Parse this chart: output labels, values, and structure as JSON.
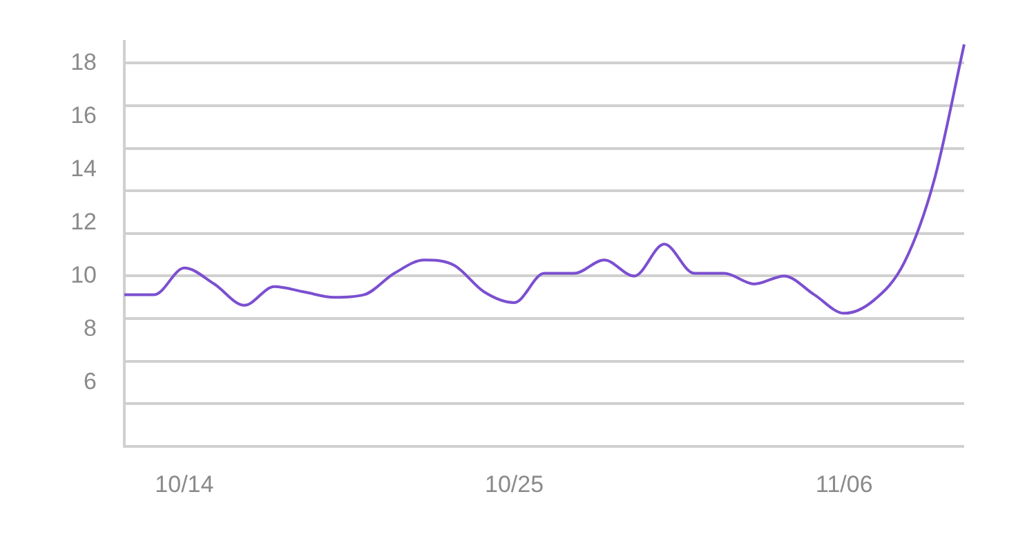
{
  "chart_data": {
    "type": "line",
    "categories": [
      null,
      null,
      "10/14",
      null,
      null,
      null,
      null,
      null,
      null,
      null,
      null,
      null,
      null,
      "10/25",
      null,
      null,
      null,
      null,
      null,
      null,
      null,
      null,
      null,
      null,
      "11/06",
      null,
      null,
      null,
      null
    ],
    "series": [
      {
        "color": "#7b4fd0",
        "values": [
          9.3,
          9.3,
          10.3,
          9.7,
          8.9,
          9.6,
          9.4,
          9.2,
          9.3,
          10.1,
          10.6,
          10.4,
          9.4,
          9.0,
          10.1,
          10.1,
          10.6,
          10.0,
          11.2,
          10.1,
          10.1,
          9.7,
          10.0,
          9.3,
          8.6,
          9.1,
          10.5,
          13.6,
          18.7
        ]
      }
    ],
    "ylim": [
      3.6,
      18.8
    ],
    "yticks": [
      {
        "value": 18,
        "label": "18"
      },
      {
        "value": 16.4,
        "label": null
      },
      16,
      {
        "value": 14.8,
        "label": null
      },
      14,
      {
        "value": 13.2,
        "label": null
      },
      12,
      {
        "value": 11.6,
        "label": null
      },
      {
        "value": 10,
        "label": "10"
      },
      {
        "value": 8.4,
        "label": null
      },
      8,
      {
        "value": 6.8,
        "label": null
      },
      6,
      {
        "value": 5.2,
        "label": null
      },
      {
        "value": 3.6,
        "label": null
      }
    ],
    "grid": "y",
    "legend": false,
    "marker": "none",
    "line_style": "solid"
  }
}
